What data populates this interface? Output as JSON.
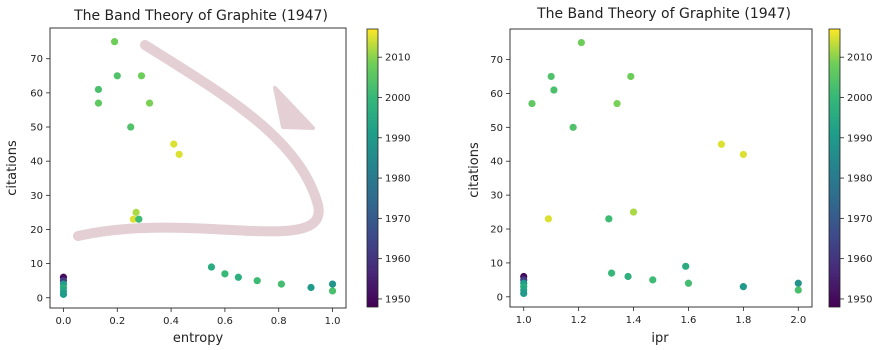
{
  "chart_data": [
    {
      "type": "scatter",
      "title": "The Band Theory of Graphite (1947)",
      "xlabel": "entropy",
      "ylabel": "citations",
      "xlim": [
        -0.05,
        1.05
      ],
      "ylim": [
        -3,
        79
      ],
      "xticks": [
        "0.0",
        "0.2",
        "0.4",
        "0.6",
        "0.8",
        "1.0"
      ],
      "yticks": [
        "0",
        "10",
        "20",
        "30",
        "40",
        "50",
        "60",
        "70"
      ],
      "colorbar": {
        "min": 1948,
        "max": 2017,
        "ticks": [
          "1950",
          "1960",
          "1970",
          "1980",
          "1990",
          "2000",
          "2010"
        ]
      },
      "annotation": "curved arrow",
      "points": [
        {
          "x": 0.0,
          "y": 6,
          "year": 1950
        },
        {
          "x": 0.0,
          "y": 5,
          "year": 1962
        },
        {
          "x": 0.0,
          "y": 4,
          "year": 1990
        },
        {
          "x": 0.0,
          "y": 3,
          "year": 1996
        },
        {
          "x": 0.0,
          "y": 2,
          "year": 1993
        },
        {
          "x": 0.0,
          "y": 1,
          "year": 1990
        },
        {
          "x": 0.19,
          "y": 75,
          "year": 2008
        },
        {
          "x": 0.2,
          "y": 65,
          "year": 2004
        },
        {
          "x": 0.29,
          "y": 65,
          "year": 2008
        },
        {
          "x": 0.13,
          "y": 61,
          "year": 2003
        },
        {
          "x": 0.13,
          "y": 57,
          "year": 2006
        },
        {
          "x": 0.32,
          "y": 57,
          "year": 2009
        },
        {
          "x": 0.25,
          "y": 50,
          "year": 2004
        },
        {
          "x": 0.41,
          "y": 45,
          "year": 2015
        },
        {
          "x": 0.43,
          "y": 42,
          "year": 2015
        },
        {
          "x": 0.27,
          "y": 25,
          "year": 2012
        },
        {
          "x": 0.26,
          "y": 23,
          "year": 2015
        },
        {
          "x": 0.28,
          "y": 23,
          "year": 2001
        },
        {
          "x": 0.55,
          "y": 9,
          "year": 1996
        },
        {
          "x": 0.6,
          "y": 7,
          "year": 2000
        },
        {
          "x": 0.65,
          "y": 6,
          "year": 1997
        },
        {
          "x": 0.72,
          "y": 5,
          "year": 2001
        },
        {
          "x": 0.81,
          "y": 4,
          "year": 2002
        },
        {
          "x": 0.92,
          "y": 3,
          "year": 1990
        },
        {
          "x": 1.0,
          "y": 4,
          "year": 1988
        },
        {
          "x": 1.0,
          "y": 2,
          "year": 2003
        }
      ]
    },
    {
      "type": "scatter",
      "title": "The Band Theory of Graphite (1947)",
      "xlabel": "ipr",
      "ylabel": "citations",
      "xlim": [
        0.95,
        2.05
      ],
      "ylim": [
        -3,
        79
      ],
      "xticks": [
        "1.0",
        "1.2",
        "1.4",
        "1.6",
        "1.8",
        "2.0"
      ],
      "yticks": [
        "0",
        "10",
        "20",
        "30",
        "40",
        "50",
        "60",
        "70"
      ],
      "colorbar": {
        "min": 1948,
        "max": 2017,
        "ticks": [
          "1950",
          "1960",
          "1970",
          "1980",
          "1990",
          "2000",
          "2010"
        ]
      },
      "points": [
        {
          "x": 1.0,
          "y": 6,
          "year": 1950
        },
        {
          "x": 1.0,
          "y": 5,
          "year": 1962
        },
        {
          "x": 1.0,
          "y": 4,
          "year": 1990
        },
        {
          "x": 1.0,
          "y": 3,
          "year": 1996
        },
        {
          "x": 1.0,
          "y": 2,
          "year": 1993
        },
        {
          "x": 1.0,
          "y": 1,
          "year": 1990
        },
        {
          "x": 1.21,
          "y": 75,
          "year": 2008
        },
        {
          "x": 1.1,
          "y": 65,
          "year": 2004
        },
        {
          "x": 1.39,
          "y": 65,
          "year": 2008
        },
        {
          "x": 1.11,
          "y": 61,
          "year": 2003
        },
        {
          "x": 1.03,
          "y": 57,
          "year": 2006
        },
        {
          "x": 1.34,
          "y": 57,
          "year": 2009
        },
        {
          "x": 1.18,
          "y": 50,
          "year": 2004
        },
        {
          "x": 1.72,
          "y": 45,
          "year": 2015
        },
        {
          "x": 1.8,
          "y": 42,
          "year": 2015
        },
        {
          "x": 1.4,
          "y": 25,
          "year": 2012
        },
        {
          "x": 1.09,
          "y": 23,
          "year": 2015
        },
        {
          "x": 1.31,
          "y": 23,
          "year": 2001
        },
        {
          "x": 1.59,
          "y": 9,
          "year": 1996
        },
        {
          "x": 1.32,
          "y": 7,
          "year": 2000
        },
        {
          "x": 1.38,
          "y": 6,
          "year": 1997
        },
        {
          "x": 1.47,
          "y": 5,
          "year": 2001
        },
        {
          "x": 1.6,
          "y": 4,
          "year": 2002
        },
        {
          "x": 1.8,
          "y": 3,
          "year": 1990
        },
        {
          "x": 2.0,
          "y": 4,
          "year": 1988
        },
        {
          "x": 2.0,
          "y": 2,
          "year": 2003
        }
      ]
    }
  ]
}
